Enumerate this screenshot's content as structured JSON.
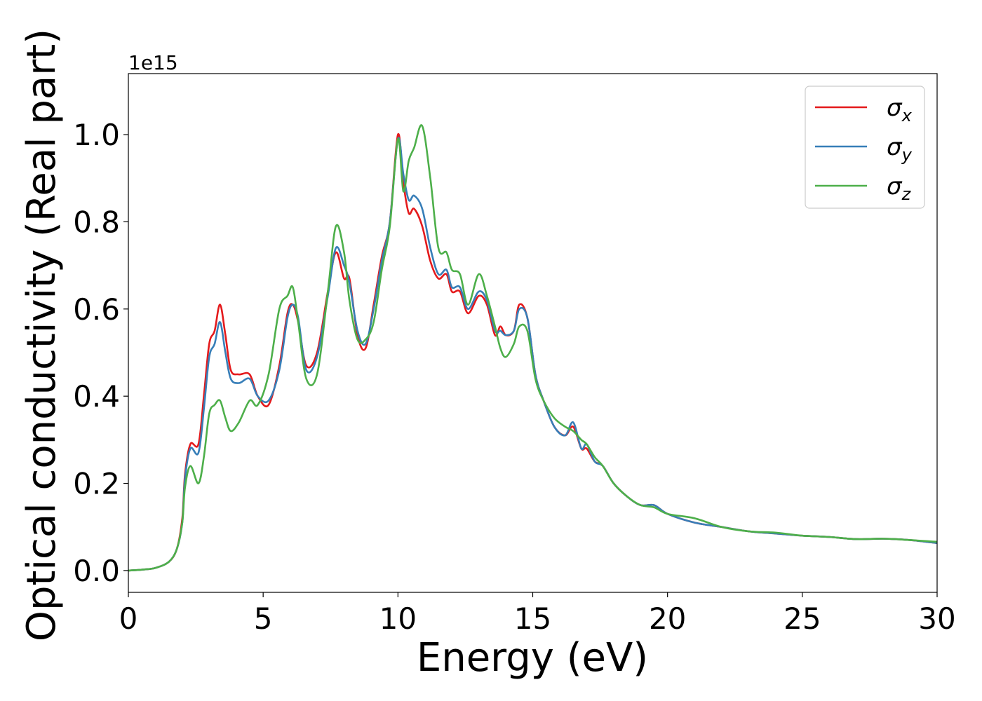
{
  "chart_data": {
    "type": "line",
    "xlabel": "Energy (eV)",
    "ylabel": "Optical conductivity (Real part)",
    "y_offset_text": "1e15",
    "xlim": [
      0,
      30
    ],
    "ylim": [
      -0.05,
      1.14
    ],
    "y_scale_factor": 1000000000000000.0,
    "x_ticks": [
      0,
      5,
      10,
      15,
      20,
      25,
      30
    ],
    "x_tick_labels": [
      "0",
      "5",
      "10",
      "15",
      "20",
      "25",
      "30"
    ],
    "y_ticks": [
      0.0,
      0.2,
      0.4,
      0.6,
      0.8,
      1.0
    ],
    "y_tick_labels": [
      "0.0",
      "0.2",
      "0.4",
      "0.6",
      "0.8",
      "1.0"
    ],
    "grid": false,
    "legend_position": "top-right",
    "series": [
      {
        "name": "σx",
        "symbol": "σ",
        "subscript": "x",
        "color": "#e41a1c",
        "x": [
          0,
          0.5,
          1.0,
          1.5,
          1.8,
          2.0,
          2.1,
          2.3,
          2.6,
          2.8,
          3.0,
          3.2,
          3.4,
          3.6,
          3.8,
          4.1,
          4.5,
          4.8,
          5.2,
          5.6,
          5.9,
          6.1,
          6.3,
          6.6,
          7.0,
          7.4,
          7.7,
          8.0,
          8.2,
          8.5,
          8.8,
          9.1,
          9.4,
          9.7,
          10.0,
          10.2,
          10.4,
          10.6,
          10.9,
          11.2,
          11.5,
          11.8,
          12.0,
          12.3,
          12.6,
          13.0,
          13.3,
          13.6,
          13.8,
          14.0,
          14.3,
          14.5,
          14.8,
          15.1,
          15.4,
          15.8,
          16.2,
          16.5,
          16.8,
          17.0,
          17.3,
          17.6,
          18.0,
          18.5,
          19.0,
          19.5,
          20.0,
          21.0,
          22.0,
          23.0,
          24.0,
          25.0,
          26.0,
          27.0,
          28.0,
          29.0,
          30.0
        ],
        "y": [
          0.0,
          0.002,
          0.006,
          0.02,
          0.05,
          0.12,
          0.22,
          0.29,
          0.29,
          0.4,
          0.52,
          0.55,
          0.61,
          0.54,
          0.46,
          0.45,
          0.45,
          0.4,
          0.38,
          0.47,
          0.59,
          0.61,
          0.57,
          0.47,
          0.5,
          0.64,
          0.73,
          0.67,
          0.67,
          0.54,
          0.51,
          0.61,
          0.72,
          0.8,
          1.0,
          0.89,
          0.82,
          0.83,
          0.79,
          0.71,
          0.67,
          0.68,
          0.64,
          0.64,
          0.59,
          0.63,
          0.61,
          0.54,
          0.56,
          0.54,
          0.55,
          0.61,
          0.58,
          0.45,
          0.39,
          0.33,
          0.31,
          0.33,
          0.28,
          0.28,
          0.25,
          0.24,
          0.2,
          0.17,
          0.15,
          0.15,
          0.13,
          0.11,
          0.1,
          0.09,
          0.085,
          0.08,
          0.077,
          0.072,
          0.073,
          0.07,
          0.063
        ]
      },
      {
        "name": "σy",
        "symbol": "σ",
        "subscript": "y",
        "color": "#377eb8",
        "x": [
          0,
          0.5,
          1.0,
          1.5,
          1.8,
          2.0,
          2.1,
          2.3,
          2.6,
          2.8,
          3.0,
          3.2,
          3.4,
          3.6,
          3.8,
          4.1,
          4.5,
          4.8,
          5.2,
          5.6,
          5.9,
          6.1,
          6.3,
          6.6,
          7.0,
          7.4,
          7.7,
          8.0,
          8.2,
          8.5,
          8.8,
          9.1,
          9.4,
          9.7,
          10.0,
          10.2,
          10.4,
          10.6,
          10.9,
          11.2,
          11.5,
          11.8,
          12.0,
          12.3,
          12.6,
          13.0,
          13.3,
          13.6,
          13.8,
          14.0,
          14.3,
          14.5,
          14.8,
          15.1,
          15.4,
          15.8,
          16.2,
          16.5,
          16.8,
          17.0,
          17.3,
          17.6,
          18.0,
          18.5,
          19.0,
          19.5,
          20.0,
          21.0,
          22.0,
          23.0,
          24.0,
          25.0,
          26.0,
          27.0,
          28.0,
          29.0,
          30.0
        ],
        "y": [
          0.0,
          0.002,
          0.006,
          0.02,
          0.05,
          0.11,
          0.21,
          0.28,
          0.27,
          0.37,
          0.49,
          0.52,
          0.57,
          0.5,
          0.44,
          0.43,
          0.44,
          0.4,
          0.39,
          0.46,
          0.58,
          0.61,
          0.58,
          0.46,
          0.49,
          0.63,
          0.74,
          0.7,
          0.66,
          0.55,
          0.52,
          0.6,
          0.71,
          0.8,
          0.99,
          0.91,
          0.85,
          0.86,
          0.83,
          0.74,
          0.68,
          0.69,
          0.65,
          0.65,
          0.6,
          0.64,
          0.62,
          0.55,
          0.55,
          0.54,
          0.55,
          0.6,
          0.58,
          0.45,
          0.39,
          0.33,
          0.31,
          0.34,
          0.28,
          0.29,
          0.25,
          0.24,
          0.2,
          0.17,
          0.15,
          0.15,
          0.13,
          0.11,
          0.1,
          0.09,
          0.085,
          0.08,
          0.077,
          0.072,
          0.073,
          0.07,
          0.063
        ]
      },
      {
        "name": "σz",
        "symbol": "σ",
        "subscript": "z",
        "color": "#4daf4a",
        "x": [
          0,
          0.5,
          1.0,
          1.5,
          1.8,
          2.0,
          2.1,
          2.3,
          2.6,
          2.8,
          3.0,
          3.2,
          3.4,
          3.6,
          3.8,
          4.1,
          4.5,
          4.8,
          5.2,
          5.6,
          5.9,
          6.1,
          6.3,
          6.6,
          7.0,
          7.4,
          7.7,
          8.0,
          8.2,
          8.5,
          8.8,
          9.1,
          9.4,
          9.7,
          10.0,
          10.2,
          10.4,
          10.6,
          10.9,
          11.2,
          11.5,
          11.8,
          12.0,
          12.3,
          12.6,
          13.0,
          13.3,
          13.6,
          13.8,
          14.0,
          14.3,
          14.5,
          14.8,
          15.1,
          15.4,
          15.8,
          16.2,
          16.5,
          16.8,
          17.0,
          17.3,
          17.6,
          18.0,
          18.5,
          19.0,
          19.5,
          20.0,
          21.0,
          22.0,
          23.0,
          24.0,
          25.0,
          26.0,
          27.0,
          28.0,
          29.0,
          30.0
        ],
        "y": [
          0.0,
          0.002,
          0.006,
          0.02,
          0.05,
          0.11,
          0.19,
          0.24,
          0.2,
          0.26,
          0.36,
          0.38,
          0.39,
          0.35,
          0.32,
          0.34,
          0.39,
          0.38,
          0.45,
          0.6,
          0.63,
          0.65,
          0.57,
          0.44,
          0.45,
          0.64,
          0.79,
          0.73,
          0.62,
          0.53,
          0.53,
          0.57,
          0.69,
          0.79,
          0.99,
          0.87,
          0.94,
          0.97,
          1.02,
          0.9,
          0.74,
          0.73,
          0.69,
          0.68,
          0.61,
          0.68,
          0.63,
          0.56,
          0.51,
          0.49,
          0.52,
          0.56,
          0.55,
          0.44,
          0.39,
          0.35,
          0.33,
          0.32,
          0.3,
          0.29,
          0.26,
          0.24,
          0.2,
          0.17,
          0.15,
          0.145,
          0.13,
          0.12,
          0.1,
          0.09,
          0.087,
          0.08,
          0.077,
          0.072,
          0.073,
          0.07,
          0.066
        ]
      }
    ]
  }
}
